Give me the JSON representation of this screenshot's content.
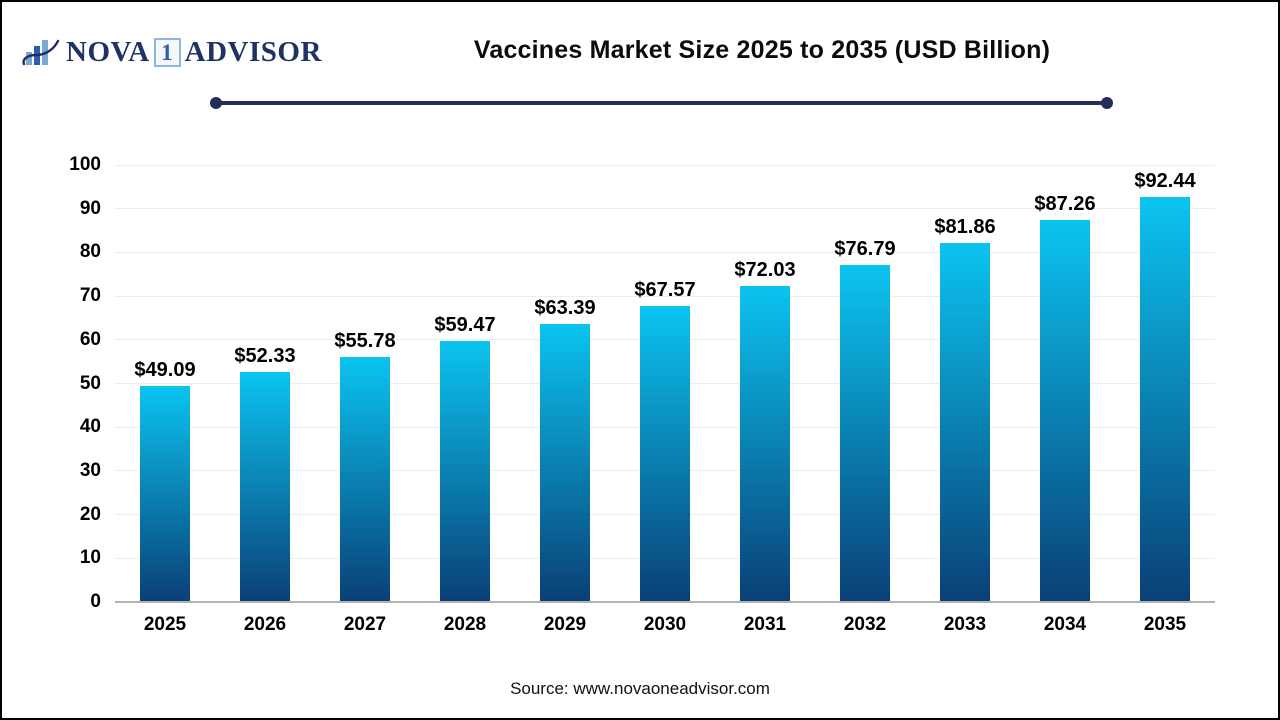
{
  "logo": {
    "brand_prefix": "NOVA",
    "brand_number": "1",
    "brand_suffix": "ADVISOR"
  },
  "source": "Source: www.novaoneadvisor.com",
  "colors": {
    "accent_navy": "#222D5A",
    "logo_navy": "#1F3263",
    "logo_light_blue": "#7AA7D6",
    "logo_medium_blue": "#2D5FA8",
    "gridline": "#EDEDED",
    "axis_line": "#B3B3B3",
    "text": "#000000"
  },
  "chart_data": {
    "type": "bar",
    "title": "Vaccines Market Size 2025 to 2035 (USD Billion)",
    "categories": [
      "2025",
      "2026",
      "2027",
      "2028",
      "2029",
      "2030",
      "2031",
      "2032",
      "2033",
      "2034",
      "2035"
    ],
    "values": [
      49.09,
      52.33,
      55.78,
      59.47,
      63.39,
      67.57,
      72.03,
      76.79,
      81.86,
      87.26,
      92.44
    ],
    "value_labels": [
      "$49.09",
      "$52.33",
      "$55.78",
      "$59.47",
      "$63.39",
      "$67.57",
      "$72.03",
      "$76.79",
      "$81.86",
      "$87.26",
      "$92.44"
    ],
    "xlabel": "",
    "ylabel": "",
    "ylim": [
      0,
      100
    ],
    "yticks": [
      0,
      10,
      20,
      30,
      40,
      50,
      60,
      70,
      80,
      90,
      100
    ],
    "grid": true,
    "legend": false,
    "bar_gradient_top": "#0BC4F0",
    "bar_gradient_bottom": "#0A4076"
  }
}
